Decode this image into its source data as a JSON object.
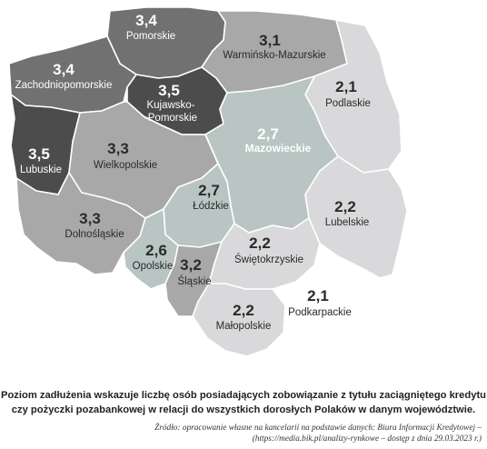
{
  "colors": {
    "very_dark": "#4c4c4d",
    "dark": "#717171",
    "mid": "#a8a8a8",
    "teal": "#b8c5c3",
    "light": "#d9d9db",
    "white": "#ffffff"
  },
  "regions": [
    {
      "key": "pomorskie",
      "name": "Pomorskie",
      "value": "3,4",
      "fill": "#717171",
      "text_color": "#ffffff"
    },
    {
      "key": "zachodniopomorskie",
      "name": "Zachodniopomorskie",
      "value": "3,4",
      "fill": "#717171",
      "text_color": "#ffffff"
    },
    {
      "key": "warminsko-mazurskie",
      "name": "Warmińsko-Mazurskie",
      "value": "3,1",
      "fill": "#a8a8a8",
      "text_color": "#2a2a2a"
    },
    {
      "key": "podlaskie",
      "name": "Podlaskie",
      "value": "2,1",
      "fill": "#d9d9db",
      "text_color": "#2a2a2a"
    },
    {
      "key": "kujawsko-pomorskie",
      "name": "Kujawsko-\n-Pomorskie",
      "value": "3,5",
      "fill": "#4c4c4d",
      "text_color": "#ffffff"
    },
    {
      "key": "mazowieckie",
      "name": "Mazowieckie",
      "value": "2,7",
      "fill": "#b8c5c3",
      "text_color": "#ffffff"
    },
    {
      "key": "lubuskie",
      "name": "Lubuskie",
      "value": "3,5",
      "fill": "#4c4c4d",
      "text_color": "#ffffff"
    },
    {
      "key": "wielkopolskie",
      "name": "Wielkopolskie",
      "value": "3,3",
      "fill": "#a8a8a8",
      "text_color": "#2a2a2a"
    },
    {
      "key": "lodzkie",
      "name": "Łódzkie",
      "value": "2,7",
      "fill": "#b8c5c3",
      "text_color": "#2a2a2a"
    },
    {
      "key": "lubelskie",
      "name": "Lubelskie",
      "value": "2,2",
      "fill": "#d9d9db",
      "text_color": "#2a2a2a"
    },
    {
      "key": "dolnoslaskie",
      "name": "Dolnośląskie",
      "value": "3,3",
      "fill": "#a8a8a8",
      "text_color": "#2a2a2a"
    },
    {
      "key": "opolskie",
      "name": "Opolskie",
      "value": "2,6",
      "fill": "#b8c5c3",
      "text_color": "#2a2a2a"
    },
    {
      "key": "slaskie",
      "name": "Śląskie",
      "value": "3,2",
      "fill": "#a8a8a8",
      "text_color": "#2a2a2a"
    },
    {
      "key": "swietokrzyskie",
      "name": "Świętokrzyskie",
      "value": "2,2",
      "fill": "#d9d9db",
      "text_color": "#2a2a2a"
    },
    {
      "key": "malopolskie",
      "name": "Małopolskie",
      "value": "2,2",
      "fill": "#d9d9db",
      "text_color": "#2a2a2a"
    },
    {
      "key": "podkarpackie",
      "name": "Podkarpackie",
      "value": "2,1",
      "fill": "#ffffff",
      "text_color": "#2a2a2a"
    }
  ],
  "caption": "Poziom zadłużenia wskazuje liczbę osób posiadających zobowiązanie z tytułu zaciągniętego kredytu czy pożyczki pozabankowej w relacji do wszystkich dorosłych Polaków w danym województwie.",
  "source_line1": "Źródło: opracowanie własne na kancelarii na podstawie danych: Biura Informacji Kredytowej –",
  "source_line2": "(https://media.bik.pl/analizy-rynkowe – dostęp z dnia 29.03.2023 r.)"
}
